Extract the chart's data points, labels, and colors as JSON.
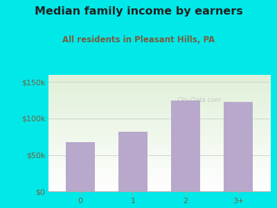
{
  "title": "Median family income by earners",
  "subtitle": "All residents in Pleasant Hills, PA",
  "categories": [
    "0",
    "1",
    "2",
    "3+"
  ],
  "values": [
    68000,
    82000,
    125000,
    123000
  ],
  "bar_color": "#b8a8cc",
  "outer_bg": "#00e8e8",
  "plot_bg_top": "#e0f0d8",
  "plot_bg_bottom": "#ffffff",
  "title_color": "#222222",
  "subtitle_color": "#7a5c3c",
  "tick_label_color": "#7a5c3c",
  "yticks": [
    0,
    50000,
    100000,
    150000
  ],
  "ytick_labels": [
    "$0",
    "$50k",
    "$100k",
    "$150k"
  ],
  "ylim": [
    0,
    160000
  ],
  "watermark": "City-Data.com",
  "title_fontsize": 11.5,
  "subtitle_fontsize": 8.5,
  "tick_fontsize": 8
}
